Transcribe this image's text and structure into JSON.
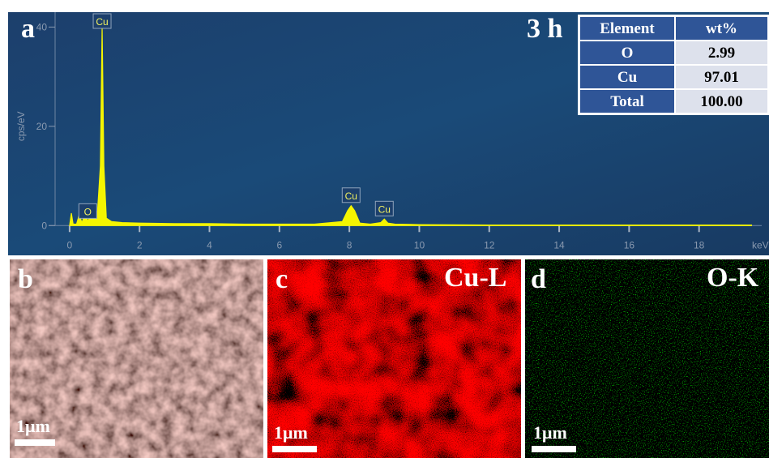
{
  "chart_data": {
    "type": "line",
    "ylabel": "cps/eV",
    "xlabel": "keV",
    "color": "#f5f500",
    "xlim": [
      -0.6,
      20
    ],
    "ylim": [
      -6,
      43
    ],
    "xticks": [
      0,
      2,
      4,
      6,
      8,
      10,
      12,
      14,
      16,
      18
    ],
    "yticks": [
      0,
      20,
      40
    ],
    "x": [
      0,
      0.05,
      0.1,
      0.2,
      0.28,
      0.35,
      0.45,
      0.52,
      0.6,
      0.7,
      0.8,
      0.88,
      0.93,
      0.98,
      1.05,
      1.2,
      1.5,
      2,
      3,
      4,
      5,
      6,
      7,
      7.8,
      7.95,
      8.05,
      8.15,
      8.3,
      8.6,
      8.9,
      9.0,
      9.1,
      9.3,
      10,
      12,
      14,
      16,
      18,
      19.5
    ],
    "values": [
      0,
      2.5,
      0.3,
      0.3,
      2.3,
      0.5,
      2.6,
      0.8,
      2.2,
      1.5,
      3,
      12,
      40,
      12,
      1.5,
      0.8,
      0.6,
      0.5,
      0.4,
      0.4,
      0.3,
      0.3,
      0.3,
      0.8,
      3,
      4,
      3,
      0.5,
      0.3,
      0.6,
      1.3,
      0.5,
      0.3,
      0.2,
      0.1,
      0.1,
      0.1,
      0.1,
      0.1
    ],
    "annotations": [
      {
        "text": "Cu",
        "x": 0.93
      },
      {
        "text": "O",
        "x": 0.52
      },
      {
        "text": "Cu",
        "x": 8.05
      },
      {
        "text": "Cu",
        "x": 9.0
      }
    ]
  },
  "panels": {
    "a": "a",
    "time": "3 h",
    "b": "b",
    "c": "c",
    "c_title": "Cu-L",
    "d": "d",
    "d_title": "O-K",
    "scale": "1μm"
  },
  "table": {
    "header": [
      "Element",
      "wt%"
    ],
    "rows": [
      [
        "O",
        "2.99"
      ],
      [
        "Cu",
        "97.01"
      ],
      [
        "Total",
        "100.00"
      ]
    ]
  }
}
